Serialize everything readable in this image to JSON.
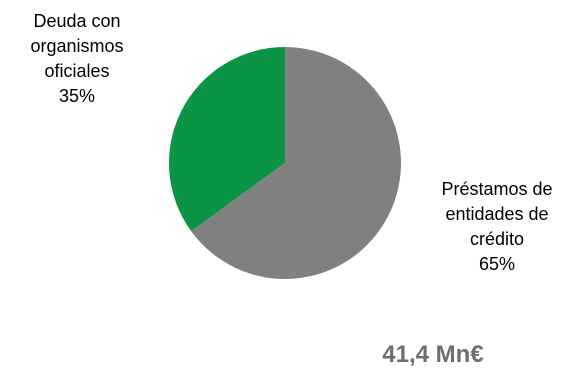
{
  "chart_data": {
    "type": "pie",
    "title": "",
    "slices": [
      {
        "label_lines": [
          "Préstamos de",
          "entidades de",
          "crédito"
        ],
        "percent_label": "65%",
        "value": 65,
        "color": "#808080"
      },
      {
        "label_lines": [
          "Deuda con",
          "organismos",
          "oficiales"
        ],
        "percent_label": "35%",
        "value": 35,
        "color": "#0B9444"
      }
    ],
    "total_label": "41,4 Mn€",
    "total_color": "#6E6E6E",
    "legend": "none"
  }
}
